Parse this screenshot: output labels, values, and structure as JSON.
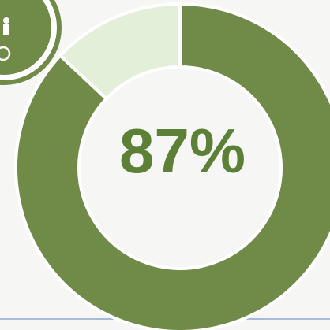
{
  "chart_data": {
    "type": "pie",
    "donut": true,
    "values": [
      87,
      13
    ],
    "value_labels": [
      "87%",
      null
    ],
    "colors": [
      "#6f8b47",
      "#e3efd9"
    ],
    "start_angle": 0,
    "direction": "clockwise"
  }
}
